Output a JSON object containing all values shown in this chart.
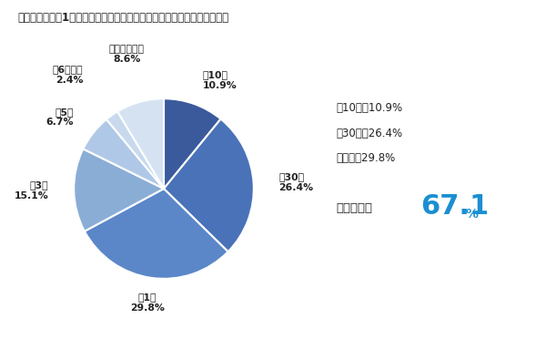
{
  "title": "メールマガジン1通あたりの閲覧にかける平均時間はどのくらいですか？",
  "slices": [
    {
      "label": "～10秒",
      "value": 10.9,
      "color": "#3a5a9b"
    },
    {
      "label": "～30秒",
      "value": 26.4,
      "color": "#4a72b8"
    },
    {
      "label": "～1分",
      "value": 29.8,
      "color": "#5b87c9"
    },
    {
      "label": "～3分",
      "value": 15.1,
      "color": "#8aadd6"
    },
    {
      "label": "～5分",
      "value": 6.7,
      "color": "#b0c8e8"
    },
    {
      "label": "～6分以上",
      "value": 2.4,
      "color": "#c8d9ee"
    },
    {
      "label": "覚えていない",
      "value": 8.6,
      "color": "#d5e2f2"
    }
  ],
  "legend_lines": [
    "～10秒：10.9%",
    "～30秒：26.4%",
    "～１分：29.8%"
  ],
  "summary_label": "１分以内：",
  "summary_value": "67.1",
  "summary_unit": "%",
  "background_color": "#ffffff",
  "title_bar_color": "#2a5aa0",
  "text_color": "#222222",
  "summary_number_color": "#1a8fd1"
}
